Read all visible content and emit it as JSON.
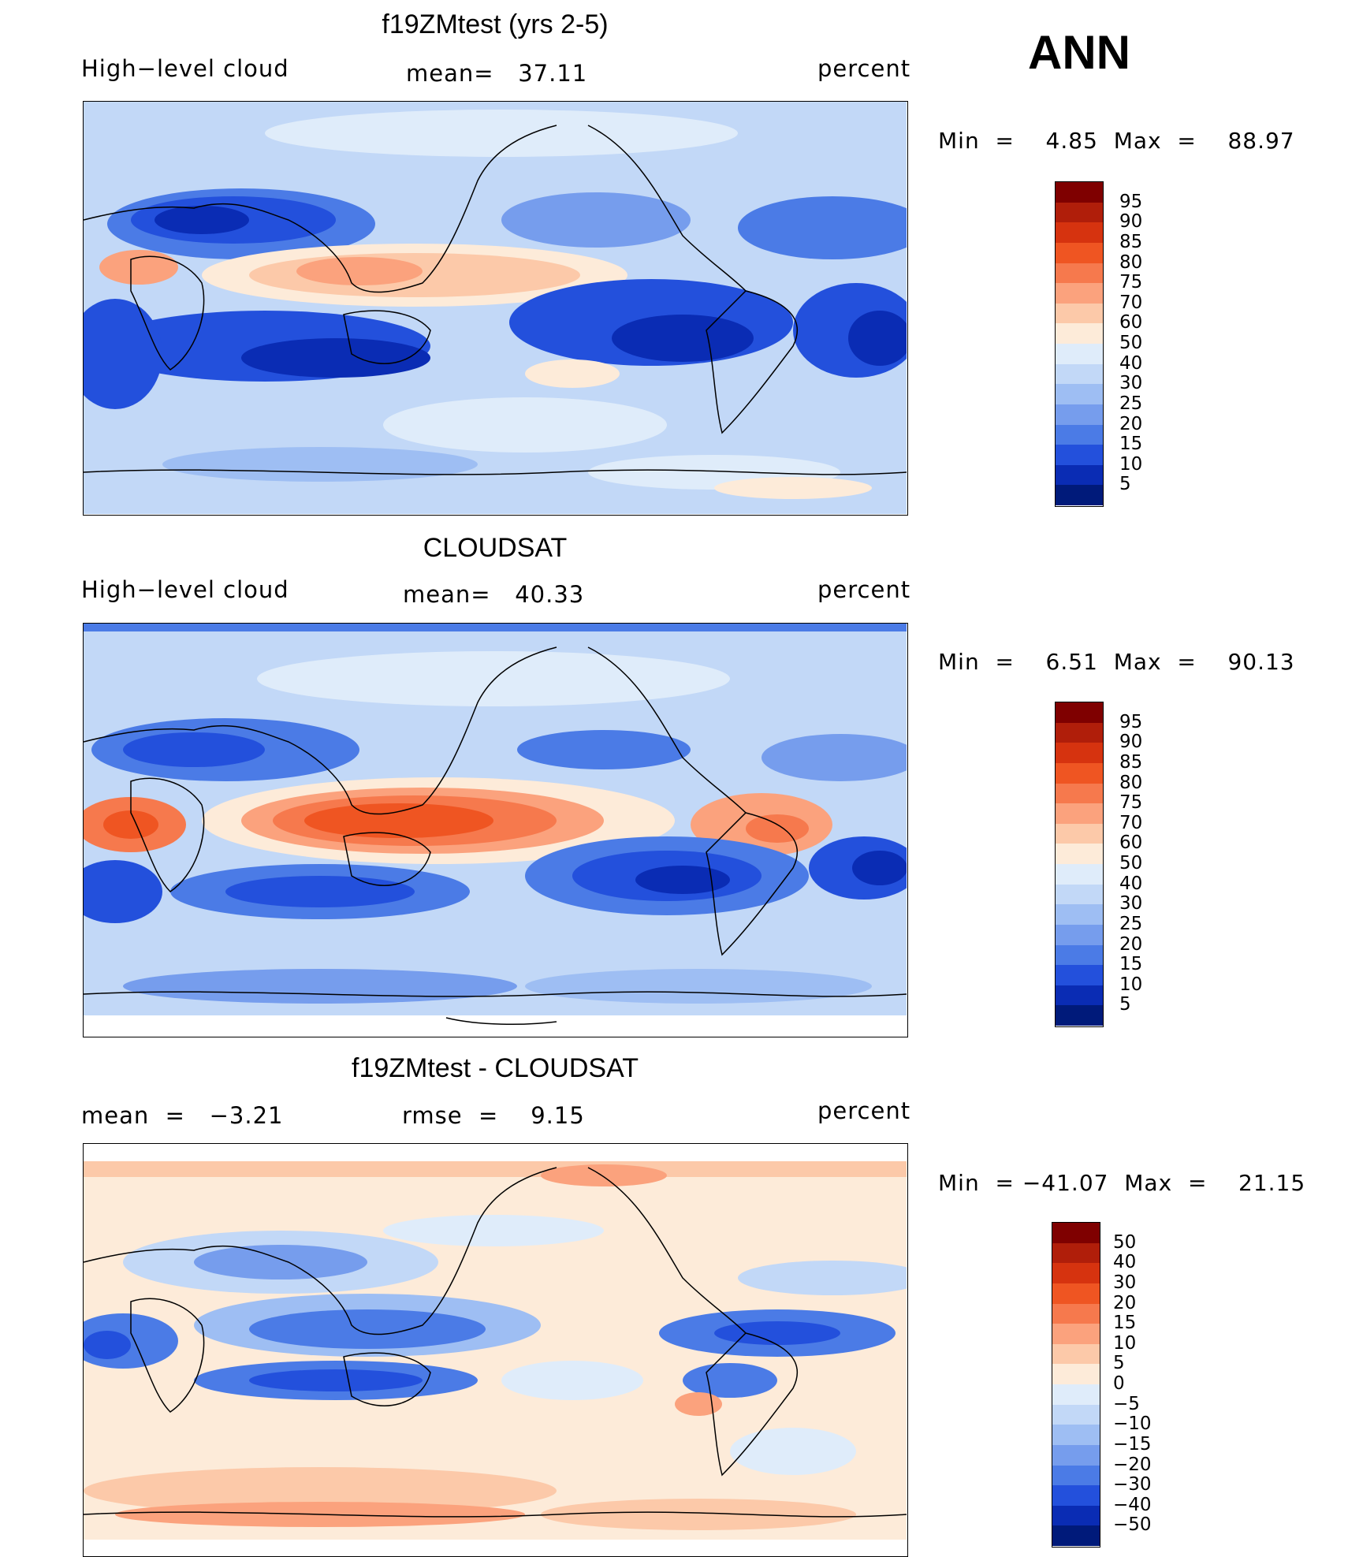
{
  "season": "ANN",
  "panels": [
    {
      "title": "f19ZMtest (yrs 2-5)",
      "left_label": "High−level cloud",
      "center_label": "mean=   37.11",
      "right_label": "percent",
      "min_max": "Min  =    4.85  Max  =    88.97"
    },
    {
      "title": "CLOUDSAT",
      "left_label": "High−level cloud",
      "center_label": "mean=   40.33",
      "right_label": "percent",
      "min_max": "Min  =    6.51  Max  =    90.13"
    },
    {
      "title": "f19ZMtest - CLOUDSAT",
      "left_label": "mean  =   −3.21",
      "center_label": "rmse  =    9.15",
      "right_label": "percent",
      "min_max": "Min  = −41.07  Max  =    21.15"
    }
  ],
  "colorbars": {
    "abs_labels": [
      "95",
      "90",
      "85",
      "80",
      "75",
      "70",
      "60",
      "50",
      "40",
      "30",
      "25",
      "20",
      "15",
      "10",
      "5"
    ],
    "diff_labels": [
      "50",
      "40",
      "30",
      "20",
      "15",
      "10",
      "5",
      "0",
      "−5",
      "−10",
      "−15",
      "−20",
      "−30",
      "−40",
      "−50"
    ],
    "colors": [
      "#7f0000",
      "#b01e0a",
      "#d6330f",
      "#ef5522",
      "#f6794d",
      "#fba27d",
      "#fcc9a9",
      "#fdebd9",
      "#dfecfa",
      "#c2d8f7",
      "#9ebef3",
      "#769ded",
      "#4b7be6",
      "#2350dc",
      "#0a2cb4",
      "#001a7a"
    ]
  }
}
